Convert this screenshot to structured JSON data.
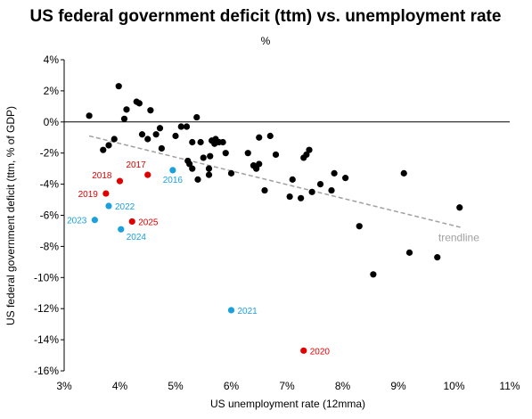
{
  "chart_data": {
    "type": "scatter",
    "title": "US federal government deficit (ttm) vs. unemployment rate",
    "subtitle": "%",
    "xlabel": "US unemployment rate (12mma)",
    "ylabel": "US federal government deficit (ttm, % of GDP)",
    "xlim": [
      3,
      11
    ],
    "ylim": [
      -16,
      4
    ],
    "x_ticks": [
      3,
      4,
      5,
      6,
      7,
      8,
      9,
      10,
      11
    ],
    "y_ticks": [
      -16,
      -14,
      -12,
      -10,
      -8,
      -6,
      -4,
      -2,
      0,
      2,
      4
    ],
    "x_tick_labels": [
      "3%",
      "4%",
      "5%",
      "6%",
      "7%",
      "8%",
      "9%",
      "10%",
      "11%"
    ],
    "y_tick_labels": [
      "-16%",
      "-14%",
      "-12%",
      "-10%",
      "-8%",
      "-6%",
      "-4%",
      "-2%",
      "0%",
      "2%",
      "4%"
    ],
    "grid": false,
    "colors": {
      "history": "#000000",
      "red_years": "#e00000",
      "blue_years": "#1aa0dc",
      "trendline": "#a0a0a0"
    },
    "trendline": {
      "label": "trendline",
      "x": [
        3.45,
        10.15
      ],
      "y": [
        -0.9,
        -6.8
      ]
    },
    "series": [
      {
        "color": "#000000",
        "points": [
          [
            3.45,
            0.4
          ],
          [
            3.7,
            -1.8
          ],
          [
            3.8,
            -1.5
          ],
          [
            3.9,
            -1.1
          ],
          [
            3.98,
            2.3
          ],
          [
            4.08,
            0.2
          ],
          [
            4.12,
            0.8
          ],
          [
            4.3,
            1.3
          ],
          [
            4.35,
            1.2
          ],
          [
            4.4,
            -0.8
          ],
          [
            4.5,
            -1.1
          ],
          [
            4.55,
            0.75
          ],
          [
            4.65,
            -0.8
          ],
          [
            4.72,
            -0.4
          ],
          [
            4.75,
            -1.7
          ],
          [
            5.0,
            -0.9
          ],
          [
            5.1,
            -0.3
          ],
          [
            5.2,
            -0.3
          ],
          [
            5.22,
            -2.5
          ],
          [
            5.25,
            -2.7
          ],
          [
            5.3,
            -3.0
          ],
          [
            5.3,
            -1.3
          ],
          [
            5.38,
            0.3
          ],
          [
            5.4,
            -3.7
          ],
          [
            5.45,
            -1.3
          ],
          [
            5.5,
            -2.3
          ],
          [
            5.6,
            -3.4
          ],
          [
            5.6,
            -3.0
          ],
          [
            5.62,
            -2.2
          ],
          [
            5.65,
            -1.2
          ],
          [
            5.7,
            -1.4
          ],
          [
            5.72,
            -1.1
          ],
          [
            5.78,
            -1.3
          ],
          [
            5.85,
            -1.3
          ],
          [
            5.9,
            -2.0
          ],
          [
            6.0,
            -3.3
          ],
          [
            6.3,
            -2.0
          ],
          [
            6.4,
            -2.8
          ],
          [
            6.45,
            -3.0
          ],
          [
            6.5,
            -2.7
          ],
          [
            6.5,
            -1.0
          ],
          [
            6.6,
            -4.4
          ],
          [
            6.7,
            -0.9
          ],
          [
            6.8,
            -2.1
          ],
          [
            7.05,
            -4.8
          ],
          [
            7.1,
            -3.7
          ],
          [
            7.25,
            -4.9
          ],
          [
            7.3,
            -2.3
          ],
          [
            7.35,
            -2.1
          ],
          [
            7.4,
            -1.8
          ],
          [
            7.45,
            -4.5
          ],
          [
            7.6,
            -4.0
          ],
          [
            7.8,
            -4.4
          ],
          [
            7.85,
            -3.3
          ],
          [
            8.05,
            -3.6
          ],
          [
            8.3,
            -6.7
          ],
          [
            8.55,
            -9.8
          ],
          [
            9.1,
            -3.3
          ],
          [
            9.2,
            -8.4
          ],
          [
            9.7,
            -8.7
          ],
          [
            10.1,
            -5.5
          ]
        ]
      },
      {
        "color": "#e00000",
        "points": [
          [
            4.0,
            -3.8
          ],
          [
            4.5,
            -3.4
          ],
          [
            3.75,
            -4.6
          ],
          [
            4.22,
            -6.4
          ],
          [
            7.3,
            -14.7
          ]
        ],
        "labels": [
          "2018",
          "2017",
          "2019",
          "2025",
          "2020"
        ]
      },
      {
        "color": "#1aa0dc",
        "points": [
          [
            4.95,
            -3.1
          ],
          [
            3.8,
            -5.4
          ],
          [
            3.55,
            -6.3
          ],
          [
            4.02,
            -6.9
          ],
          [
            6.0,
            -12.1
          ]
        ],
        "labels": [
          "2016",
          "2022",
          "2023",
          "2024",
          "2021"
        ]
      }
    ]
  }
}
